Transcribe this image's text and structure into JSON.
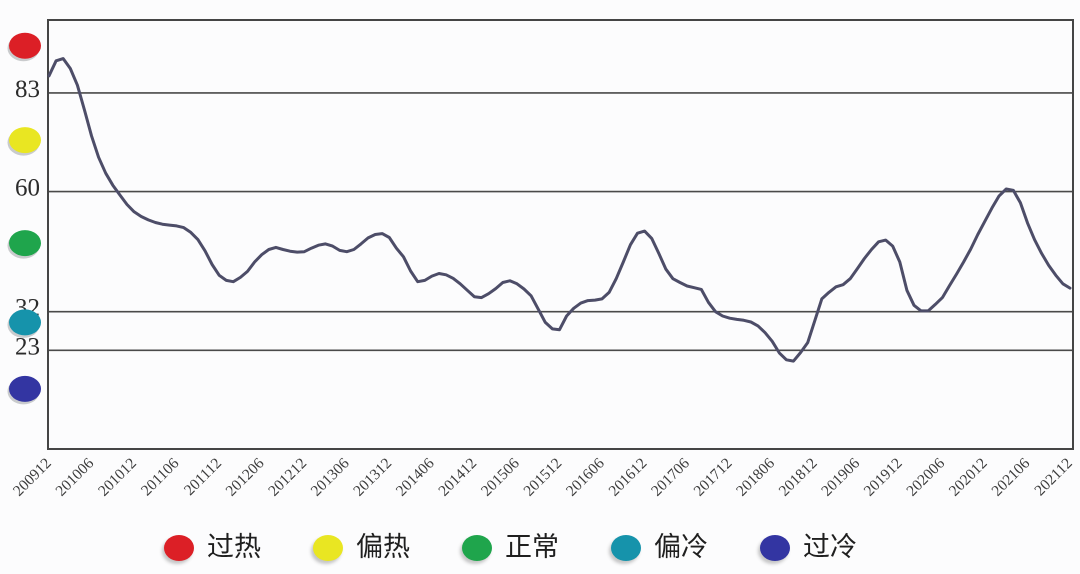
{
  "colors": {
    "background": "#fcfcfd",
    "line": "#4d4d68",
    "axis": "#454545",
    "grid": "#4a4a4a",
    "y_label_text": "#2b2b2b",
    "x_tick_text": "#3b3b3b",
    "legend_text": "#1f1f1f"
  },
  "chart_data": {
    "type": "line",
    "title": "",
    "ylim": [
      0,
      100
    ],
    "grid": "horizontal",
    "legend_position": "bottom",
    "y_gridlines": [
      {
        "label": "83",
        "value": 83
      },
      {
        "label": "60",
        "value": 60
      },
      {
        "label": "32",
        "value": 32
      },
      {
        "label": "23",
        "value": 23
      }
    ],
    "zones": [
      {
        "label": "过热",
        "color": "#dc1f26",
        "range": [
          83,
          100
        ],
        "dot_value": 94
      },
      {
        "label": "偏热",
        "color": "#e9e622",
        "range": [
          60,
          83
        ],
        "dot_value": 72
      },
      {
        "label": "正常",
        "color": "#1fa54c",
        "range": [
          32,
          60
        ],
        "dot_value": 48
      },
      {
        "label": "偏冷",
        "color": "#1693ab",
        "range": [
          23,
          32
        ],
        "dot_value": 29.5
      },
      {
        "label": "过冷",
        "color": "#3335a2",
        "range": [
          0,
          23
        ],
        "dot_value": 14
      }
    ],
    "x_tick_labels": [
      "200912",
      "201006",
      "201012",
      "201106",
      "201112",
      "201206",
      "201212",
      "201306",
      "201312",
      "201406",
      "201412",
      "201506",
      "201512",
      "201606",
      "201612",
      "201706",
      "201712",
      "201806",
      "201812",
      "201906",
      "201912",
      "202006",
      "202012",
      "202106",
      "202112"
    ],
    "months_per_tick": 6,
    "values": [
      87,
      90.5,
      91,
      88.7,
      84.8,
      79,
      73,
      68,
      64.3,
      61.5,
      59.2,
      57,
      55.3,
      54.2,
      53.4,
      52.8,
      52.4,
      52.2,
      52,
      51.6,
      50.5,
      48.8,
      46.2,
      43,
      40.5,
      39.3,
      39,
      40,
      41.4,
      43.6,
      45.3,
      46.5,
      47,
      46.5,
      46.1,
      45.9,
      46,
      46.8,
      47.5,
      47.8,
      47.3,
      46.3,
      46,
      46.5,
      47.8,
      49.2,
      50,
      50.2,
      49.3,
      46.8,
      44.8,
      41.5,
      39,
      39.3,
      40.3,
      40.9,
      40.6,
      39.8,
      38.5,
      37,
      35.5,
      35.3,
      36.2,
      37.4,
      38.8,
      39.2,
      38.5,
      37.3,
      35.7,
      32.6,
      29.5,
      28,
      27.8,
      31,
      32.8,
      34,
      34.6,
      34.7,
      35,
      36.5,
      39.7,
      43.6,
      47.6,
      50.3,
      50.8,
      49.1,
      45.6,
      41.9,
      39.7,
      38.8,
      38,
      37.6,
      37.2,
      34.2,
      32,
      31,
      30.5,
      30.2,
      30,
      29.6,
      28.7,
      27.1,
      25.1,
      22.4,
      20.8,
      20.5,
      22.5,
      24.8,
      29.9,
      35,
      36.5,
      37.8,
      38.3,
      39.7,
      42,
      44.4,
      46.5,
      48.3,
      48.7,
      47.3,
      43.6,
      37,
      33.5,
      32.2,
      32.2,
      33.7,
      35.3,
      38.1,
      40.8,
      43.6,
      46.6,
      50,
      53.1,
      56.2,
      59,
      60.6,
      60.3,
      57.4,
      52.7,
      48.8,
      45.6,
      42.8,
      40.5,
      38.5,
      37.5
    ]
  }
}
